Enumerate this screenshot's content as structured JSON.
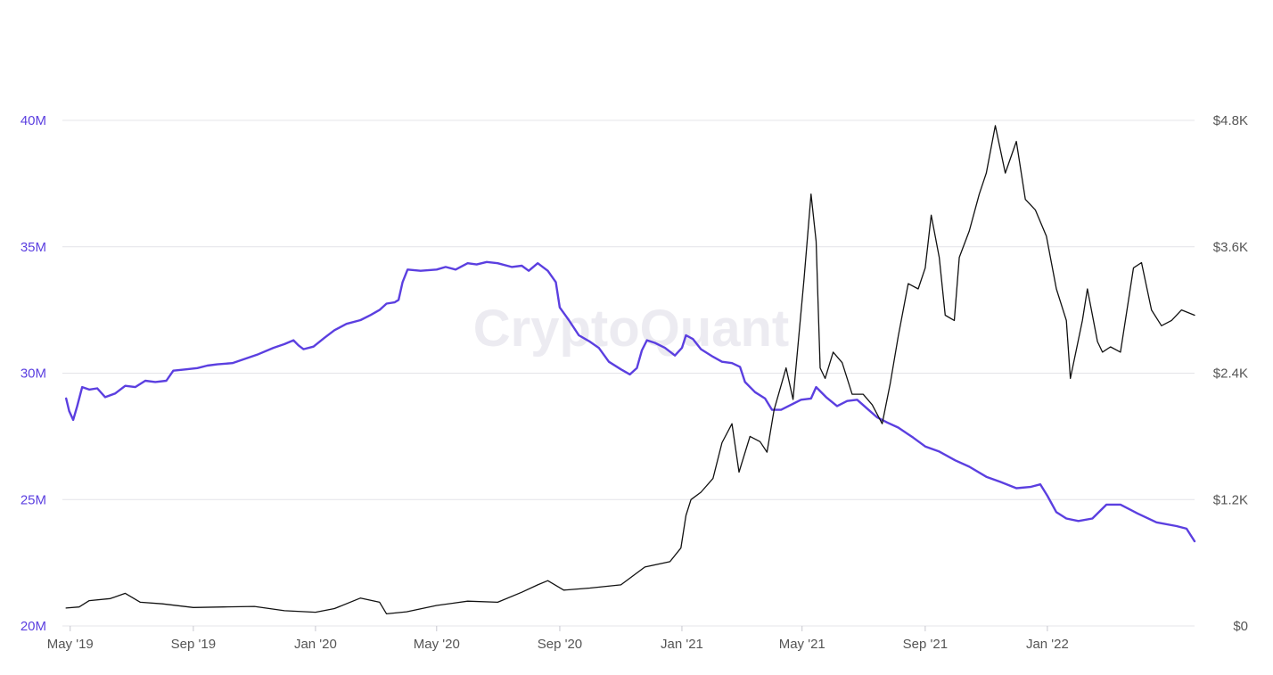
{
  "watermark": "CryptoQuant",
  "colors": {
    "series_left": "#5b3fe0",
    "series_right": "#111111",
    "grid": "#e4e4e8",
    "axis_text_left": "#5b3fe0",
    "axis_text_right": "#555555"
  },
  "chart_data": {
    "type": "line",
    "grid": true,
    "legend": "none",
    "x_range": [
      "2019-04-25",
      "2022-05-28"
    ],
    "x_ticks": [
      {
        "date": "2019-05-01",
        "label": "May '19"
      },
      {
        "date": "2019-09-01",
        "label": "Sep '19"
      },
      {
        "date": "2020-01-01",
        "label": "Jan '20"
      },
      {
        "date": "2020-05-01",
        "label": "May '20"
      },
      {
        "date": "2020-09-01",
        "label": "Sep '20"
      },
      {
        "date": "2021-01-01",
        "label": "Jan '21"
      },
      {
        "date": "2021-05-01",
        "label": "May '21"
      },
      {
        "date": "2021-09-01",
        "label": "Sep '21"
      },
      {
        "date": "2022-01-01",
        "label": "Jan '22"
      }
    ],
    "y_left": {
      "range": [
        20000000,
        40000000
      ],
      "ticks": [
        {
          "value": 20000000,
          "label": "20M"
        },
        {
          "value": 25000000,
          "label": "25M"
        },
        {
          "value": 30000000,
          "label": "30M"
        },
        {
          "value": 35000000,
          "label": "35M"
        },
        {
          "value": 40000000,
          "label": "40M"
        }
      ]
    },
    "y_right": {
      "range": [
        0,
        4800
      ],
      "ticks": [
        {
          "value": 0,
          "label": "$0"
        },
        {
          "value": 1200,
          "label": "$1.2K"
        },
        {
          "value": 2400,
          "label": "$2.4K"
        },
        {
          "value": 3600,
          "label": "$3.6K"
        },
        {
          "value": 4800,
          "label": "$4.8K"
        }
      ]
    },
    "series": [
      {
        "axis": "left",
        "color": "#5b3fe0",
        "points": [
          [
            "2019-04-27",
            29000000
          ],
          [
            "2019-04-30",
            28500000
          ],
          [
            "2019-05-04",
            28150000
          ],
          [
            "2019-05-08",
            28700000
          ],
          [
            "2019-05-13",
            29450000
          ],
          [
            "2019-05-20",
            29350000
          ],
          [
            "2019-05-28",
            29400000
          ],
          [
            "2019-06-05",
            29050000
          ],
          [
            "2019-06-15",
            29200000
          ],
          [
            "2019-06-25",
            29500000
          ],
          [
            "2019-07-05",
            29450000
          ],
          [
            "2019-07-15",
            29700000
          ],
          [
            "2019-07-25",
            29650000
          ],
          [
            "2019-08-05",
            29700000
          ],
          [
            "2019-08-12",
            30100000
          ],
          [
            "2019-08-25",
            30150000
          ],
          [
            "2019-09-05",
            30200000
          ],
          [
            "2019-09-15",
            30300000
          ],
          [
            "2019-09-25",
            30350000
          ],
          [
            "2019-10-10",
            30400000
          ],
          [
            "2019-10-25",
            30600000
          ],
          [
            "2019-11-05",
            30750000
          ],
          [
            "2019-11-20",
            31000000
          ],
          [
            "2019-12-01",
            31150000
          ],
          [
            "2019-12-10",
            31300000
          ],
          [
            "2019-12-15",
            31100000
          ],
          [
            "2019-12-20",
            30950000
          ],
          [
            "2019-12-30",
            31050000
          ],
          [
            "2020-01-10",
            31400000
          ],
          [
            "2020-01-20",
            31700000
          ],
          [
            "2020-02-01",
            31950000
          ],
          [
            "2020-02-15",
            32100000
          ],
          [
            "2020-02-25",
            32300000
          ],
          [
            "2020-03-05",
            32500000
          ],
          [
            "2020-03-12",
            32750000
          ],
          [
            "2020-03-20",
            32800000
          ],
          [
            "2020-03-24",
            32900000
          ],
          [
            "2020-03-28",
            33600000
          ],
          [
            "2020-04-02",
            34100000
          ],
          [
            "2020-04-15",
            34050000
          ],
          [
            "2020-05-01",
            34100000
          ],
          [
            "2020-05-10",
            34200000
          ],
          [
            "2020-05-20",
            34100000
          ],
          [
            "2020-06-01",
            34350000
          ],
          [
            "2020-06-10",
            34300000
          ],
          [
            "2020-06-20",
            34400000
          ],
          [
            "2020-07-01",
            34350000
          ],
          [
            "2020-07-15",
            34200000
          ],
          [
            "2020-07-25",
            34250000
          ],
          [
            "2020-08-01",
            34050000
          ],
          [
            "2020-08-10",
            34350000
          ],
          [
            "2020-08-20",
            34050000
          ],
          [
            "2020-08-28",
            33600000
          ],
          [
            "2020-09-01",
            32600000
          ],
          [
            "2020-09-10",
            32100000
          ],
          [
            "2020-09-20",
            31500000
          ],
          [
            "2020-10-01",
            31250000
          ],
          [
            "2020-10-10",
            31000000
          ],
          [
            "2020-10-20",
            30450000
          ],
          [
            "2020-11-01",
            30150000
          ],
          [
            "2020-11-10",
            29950000
          ],
          [
            "2020-11-17",
            30200000
          ],
          [
            "2020-11-22",
            30900000
          ],
          [
            "2020-11-27",
            31300000
          ],
          [
            "2020-12-05",
            31200000
          ],
          [
            "2020-12-15",
            31000000
          ],
          [
            "2020-12-25",
            30700000
          ],
          [
            "2021-01-01",
            31000000
          ],
          [
            "2021-01-05",
            31500000
          ],
          [
            "2021-01-12",
            31350000
          ],
          [
            "2021-01-20",
            30950000
          ],
          [
            "2021-02-01",
            30650000
          ],
          [
            "2021-02-10",
            30450000
          ],
          [
            "2021-02-20",
            30400000
          ],
          [
            "2021-02-28",
            30250000
          ],
          [
            "2021-03-05",
            29650000
          ],
          [
            "2021-03-15",
            29250000
          ],
          [
            "2021-03-25",
            29000000
          ],
          [
            "2021-04-01",
            28550000
          ],
          [
            "2021-04-10",
            28550000
          ],
          [
            "2021-04-20",
            28750000
          ],
          [
            "2021-04-30",
            28950000
          ],
          [
            "2021-05-10",
            29000000
          ],
          [
            "2021-05-15",
            29450000
          ],
          [
            "2021-05-25",
            29050000
          ],
          [
            "2021-06-05",
            28700000
          ],
          [
            "2021-06-15",
            28900000
          ],
          [
            "2021-06-25",
            28950000
          ],
          [
            "2021-07-05",
            28600000
          ],
          [
            "2021-07-15",
            28250000
          ],
          [
            "2021-07-25",
            28050000
          ],
          [
            "2021-08-05",
            27850000
          ],
          [
            "2021-08-20",
            27450000
          ],
          [
            "2021-09-01",
            27100000
          ],
          [
            "2021-09-15",
            26900000
          ],
          [
            "2021-10-01",
            26550000
          ],
          [
            "2021-10-15",
            26300000
          ],
          [
            "2021-11-01",
            25900000
          ],
          [
            "2021-11-15",
            25700000
          ],
          [
            "2021-12-01",
            25450000
          ],
          [
            "2021-12-15",
            25500000
          ],
          [
            "2021-12-25",
            25600000
          ],
          [
            "2022-01-01",
            25150000
          ],
          [
            "2022-01-10",
            24500000
          ],
          [
            "2022-01-20",
            24250000
          ],
          [
            "2022-02-01",
            24150000
          ],
          [
            "2022-02-15",
            24250000
          ],
          [
            "2022-03-01",
            24800000
          ],
          [
            "2022-03-15",
            24800000
          ],
          [
            "2022-04-01",
            24450000
          ],
          [
            "2022-04-20",
            24100000
          ],
          [
            "2022-05-10",
            23950000
          ],
          [
            "2022-05-20",
            23850000
          ],
          [
            "2022-05-28",
            23350000
          ]
        ]
      },
      {
        "axis": "right",
        "color": "#111111",
        "points": [
          [
            "2019-04-27",
            170
          ],
          [
            "2019-05-10",
            180
          ],
          [
            "2019-05-20",
            240
          ],
          [
            "2019-06-10",
            260
          ],
          [
            "2019-06-25",
            310
          ],
          [
            "2019-07-10",
            225
          ],
          [
            "2019-08-01",
            210
          ],
          [
            "2019-09-01",
            175
          ],
          [
            "2019-10-01",
            180
          ],
          [
            "2019-11-01",
            185
          ],
          [
            "2019-12-01",
            145
          ],
          [
            "2020-01-01",
            130
          ],
          [
            "2020-01-20",
            165
          ],
          [
            "2020-02-15",
            265
          ],
          [
            "2020-03-05",
            225
          ],
          [
            "2020-03-12",
            115
          ],
          [
            "2020-04-01",
            135
          ],
          [
            "2020-05-01",
            195
          ],
          [
            "2020-06-01",
            235
          ],
          [
            "2020-07-01",
            225
          ],
          [
            "2020-07-25",
            320
          ],
          [
            "2020-08-10",
            390
          ],
          [
            "2020-08-20",
            430
          ],
          [
            "2020-09-05",
            340
          ],
          [
            "2020-10-01",
            360
          ],
          [
            "2020-11-01",
            390
          ],
          [
            "2020-11-25",
            560
          ],
          [
            "2020-12-20",
            610
          ],
          [
            "2020-12-31",
            740
          ],
          [
            "2021-01-05",
            1050
          ],
          [
            "2021-01-10",
            1200
          ],
          [
            "2021-01-20",
            1270
          ],
          [
            "2021-02-01",
            1400
          ],
          [
            "2021-02-10",
            1740
          ],
          [
            "2021-02-20",
            1920
          ],
          [
            "2021-02-27",
            1460
          ],
          [
            "2021-03-10",
            1800
          ],
          [
            "2021-03-20",
            1750
          ],
          [
            "2021-03-27",
            1650
          ],
          [
            "2021-04-03",
            2050
          ],
          [
            "2021-04-15",
            2450
          ],
          [
            "2021-04-22",
            2150
          ],
          [
            "2021-05-03",
            3300
          ],
          [
            "2021-05-10",
            4100
          ],
          [
            "2021-05-15",
            3650
          ],
          [
            "2021-05-19",
            2450
          ],
          [
            "2021-05-24",
            2350
          ],
          [
            "2021-06-01",
            2600
          ],
          [
            "2021-06-10",
            2500
          ],
          [
            "2021-06-20",
            2200
          ],
          [
            "2021-07-01",
            2200
          ],
          [
            "2021-07-10",
            2100
          ],
          [
            "2021-07-20",
            1920
          ],
          [
            "2021-07-28",
            2300
          ],
          [
            "2021-08-05",
            2750
          ],
          [
            "2021-08-15",
            3250
          ],
          [
            "2021-08-25",
            3200
          ],
          [
            "2021-09-01",
            3400
          ],
          [
            "2021-09-07",
            3900
          ],
          [
            "2021-09-15",
            3500
          ],
          [
            "2021-09-21",
            2950
          ],
          [
            "2021-09-30",
            2900
          ],
          [
            "2021-10-05",
            3500
          ],
          [
            "2021-10-15",
            3750
          ],
          [
            "2021-10-25",
            4100
          ],
          [
            "2021-11-01",
            4300
          ],
          [
            "2021-11-10",
            4750
          ],
          [
            "2021-11-20",
            4300
          ],
          [
            "2021-12-01",
            4600
          ],
          [
            "2021-12-10",
            4050
          ],
          [
            "2021-12-20",
            3950
          ],
          [
            "2021-12-31",
            3700
          ],
          [
            "2022-01-10",
            3200
          ],
          [
            "2022-01-20",
            2900
          ],
          [
            "2022-01-24",
            2350
          ],
          [
            "2022-02-05",
            2900
          ],
          [
            "2022-02-10",
            3200
          ],
          [
            "2022-02-20",
            2700
          ],
          [
            "2022-02-25",
            2600
          ],
          [
            "2022-03-05",
            2650
          ],
          [
            "2022-03-15",
            2600
          ],
          [
            "2022-03-28",
            3400
          ],
          [
            "2022-04-05",
            3450
          ],
          [
            "2022-04-15",
            3000
          ],
          [
            "2022-04-25",
            2850
          ],
          [
            "2022-05-05",
            2900
          ],
          [
            "2022-05-15",
            3000
          ],
          [
            "2022-05-28",
            2950
          ]
        ]
      }
    ]
  }
}
